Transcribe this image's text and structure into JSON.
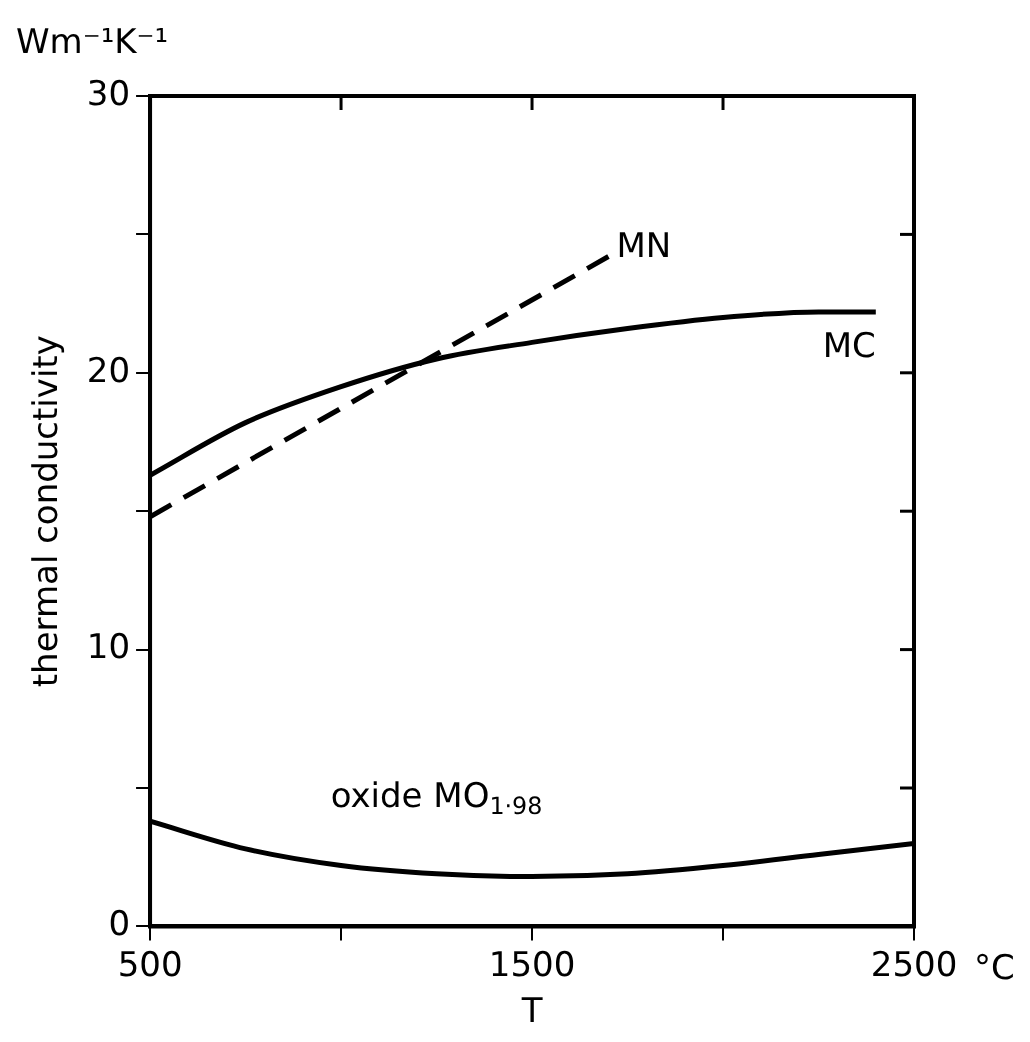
{
  "chart_data": {
    "type": "line",
    "xlabel": "T",
    "ylabel": "thermal conductivity",
    "annotations": [
      "Wm⁻¹K⁻¹",
      "°C"
    ],
    "xlim": [
      500,
      2500
    ],
    "xticks": [
      500,
      {
        "value": 1000,
        "label": null
      },
      1500,
      {
        "value": 2000,
        "label": null
      },
      2500
    ],
    "ylim": [
      0,
      30
    ],
    "yticks": [
      0,
      {
        "value": 5,
        "label": null
      },
      10,
      {
        "value": 15,
        "label": null
      },
      20,
      {
        "value": 25,
        "label": null
      },
      30
    ],
    "grid": false,
    "legend": false,
    "marker": "none",
    "series": [
      {
        "name": "MN",
        "color": "#000000",
        "line_style": "dashed",
        "x": [
          500,
          1700
        ],
        "values": [
          14.8,
          24.2
        ]
      },
      {
        "name": "MC",
        "color": "#000000",
        "line_style": "solid",
        "x": [
          500,
          750,
          1000,
          1250,
          1500,
          1750,
          2000,
          2250,
          2400
        ],
        "values": [
          16.3,
          18.2,
          19.5,
          20.5,
          21.1,
          21.6,
          22.0,
          22.2,
          22.2
        ]
      },
      {
        "name": "oxide MO$_{1·98}$",
        "color": "#000000",
        "line_style": "solid",
        "x": [
          500,
          750,
          1000,
          1250,
          1500,
          1750,
          2000,
          2250,
          2500
        ],
        "values": [
          3.8,
          2.8,
          2.2,
          1.9,
          1.8,
          1.9,
          2.2,
          2.6,
          3.0
        ]
      }
    ]
  }
}
